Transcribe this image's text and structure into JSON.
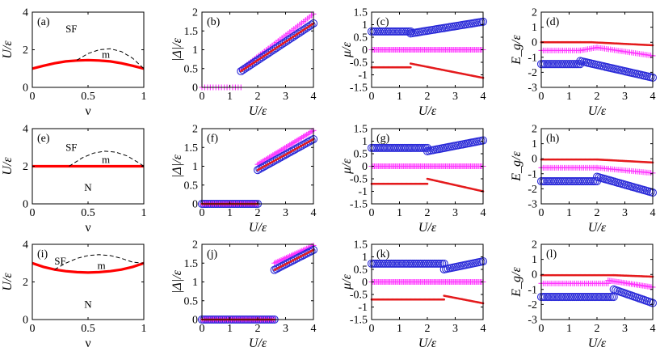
{
  "colors": {
    "red": "#e41a1c",
    "blue": "#2a2ad8",
    "magenta": "#ff33ff",
    "phase_line": "#ff0000",
    "dash": "#000000"
  },
  "chart_data": [
    {
      "panel": "(a)",
      "type": "line",
      "row": 0,
      "col": 0,
      "xlabel": "ν",
      "ylabel": "U/ε",
      "xlim": [
        0,
        1
      ],
      "ylim": [
        0,
        4
      ],
      "xticks": [
        0,
        0.5,
        1
      ],
      "yticks": [
        0,
        2,
        4
      ],
      "regions": [
        {
          "label": "SF",
          "x": 0.35,
          "y": 3.1
        },
        {
          "label": "m",
          "x": 0.66,
          "y": 1.75
        }
      ],
      "series": [
        {
          "style": "phase-boundary",
          "x": [
            0,
            0.1,
            0.2,
            0.3,
            0.4,
            0.5,
            0.6,
            0.7,
            0.8,
            0.9,
            1.0
          ],
          "y": [
            1.0,
            1.15,
            1.28,
            1.38,
            1.43,
            1.45,
            1.43,
            1.38,
            1.28,
            1.15,
            1.0
          ]
        },
        {
          "style": "dashed",
          "x": [
            0.4,
            0.5,
            0.6,
            0.7,
            0.8,
            0.9,
            1.0
          ],
          "y": [
            1.45,
            1.8,
            2.0,
            2.05,
            1.9,
            1.55,
            1.0
          ]
        }
      ]
    },
    {
      "panel": "(b)",
      "type": "scatter",
      "row": 0,
      "col": 1,
      "xlabel": "U/ε",
      "ylabel": "|Δ|/ε",
      "xlim": [
        0,
        4
      ],
      "ylim": [
        0,
        2
      ],
      "xticks": [
        0,
        1,
        2,
        3,
        4
      ],
      "yticks": [
        0,
        0.5,
        1,
        1.5,
        2
      ],
      "series": [
        {
          "marker": "plus",
          "x0": 0,
          "x1": 1.4,
          "step": 0.1,
          "y0": 0,
          "y1": 0
        },
        {
          "marker": "plus",
          "x0": 1.4,
          "x1": 4,
          "step": 0.07,
          "y0": 0.48,
          "y1": 1.95
        },
        {
          "marker": "circle",
          "x0": 1.4,
          "x1": 4,
          "step": 0.07,
          "y0": 0.43,
          "y1": 1.7
        },
        {
          "marker": "dot",
          "x0": 1.4,
          "x1": 4,
          "step": 0.035,
          "y0": 0.43,
          "y1": 1.7
        }
      ]
    },
    {
      "panel": "(c)",
      "type": "scatter",
      "row": 0,
      "col": 2,
      "xlabel": "U/ε",
      "ylabel": "μ/ε",
      "xlim": [
        0,
        4
      ],
      "ylim": [
        -1.5,
        1.5
      ],
      "xticks": [
        0,
        1,
        2,
        3,
        4
      ],
      "yticks": [
        -1.5,
        -1,
        -0.5,
        0,
        0.5,
        1,
        1.5
      ],
      "series": [
        {
          "marker": "circle",
          "x0": 0,
          "x1": 1.4,
          "step": 0.07,
          "y0": 0.73,
          "y1": 0.73
        },
        {
          "marker": "circle",
          "x0": 1.4,
          "x1": 4,
          "step": 0.07,
          "y0": 0.65,
          "y1": 1.12
        },
        {
          "marker": "plus",
          "x0": 0,
          "x1": 4,
          "step": 0.05,
          "y0": 0,
          "y1": 0
        },
        {
          "marker": "dot",
          "x0": 0,
          "x1": 1.4,
          "step": 0.035,
          "y0": -0.7,
          "y1": -0.7
        },
        {
          "marker": "dot",
          "x0": 1.4,
          "x1": 4,
          "step": 0.035,
          "y0": -0.55,
          "y1": -1.12
        }
      ]
    },
    {
      "panel": "(d)",
      "type": "scatter",
      "row": 0,
      "col": 3,
      "xlabel": "U/ε",
      "ylabel": "E_g/ε",
      "xlim": [
        0,
        4
      ],
      "ylim": [
        -3,
        2
      ],
      "xticks": [
        0,
        1,
        2,
        3,
        4
      ],
      "yticks": [
        -3,
        -2,
        -1,
        0,
        1,
        2
      ],
      "series": [
        {
          "marker": "dot",
          "x0": 0,
          "x1": 1.4,
          "step": 0.035,
          "y0": 0,
          "y1": 0
        },
        {
          "marker": "dot",
          "x0": 1.4,
          "x1": 1.8,
          "step": 0.035,
          "y0": 0,
          "y1": 0
        },
        {
          "marker": "dot",
          "x0": 1.8,
          "x1": 4,
          "step": 0.035,
          "y0": 0,
          "y1": -0.2
        },
        {
          "marker": "plus",
          "x0": 0,
          "x1": 1.4,
          "step": 0.07,
          "y0": -0.55,
          "y1": -0.55
        },
        {
          "marker": "plus",
          "x0": 1.4,
          "x1": 2.0,
          "step": 0.07,
          "y0": -0.55,
          "y1": -0.35
        },
        {
          "marker": "plus",
          "x0": 2.0,
          "x1": 4,
          "step": 0.07,
          "y0": -0.35,
          "y1": -0.9
        },
        {
          "marker": "circle",
          "x0": 0,
          "x1": 1.4,
          "step": 0.07,
          "y0": -1.45,
          "y1": -1.45
        },
        {
          "marker": "circle",
          "x0": 1.4,
          "x1": 4,
          "step": 0.07,
          "y0": -1.25,
          "y1": -2.35
        }
      ]
    },
    {
      "panel": "(e)",
      "type": "line",
      "row": 1,
      "col": 0,
      "xlabel": "ν",
      "ylabel": "U/ε",
      "xlim": [
        0,
        1
      ],
      "ylim": [
        0,
        4
      ],
      "xticks": [
        0,
        0.5,
        1
      ],
      "yticks": [
        0,
        2,
        4
      ],
      "regions": [
        {
          "label": "SF",
          "x": 0.35,
          "y": 3.0
        },
        {
          "label": "m",
          "x": 0.66,
          "y": 2.35
        },
        {
          "label": "N",
          "x": 0.5,
          "y": 0.85
        }
      ],
      "series": [
        {
          "style": "phase-boundary",
          "x": [
            0,
            1
          ],
          "y": [
            2,
            2
          ]
        },
        {
          "style": "dashed",
          "x": [
            0.33,
            0.45,
            0.55,
            0.65,
            0.75,
            0.85,
            0.95,
            1.0
          ],
          "y": [
            2.0,
            2.45,
            2.7,
            2.8,
            2.75,
            2.55,
            2.2,
            2.0
          ]
        }
      ]
    },
    {
      "panel": "(f)",
      "type": "scatter",
      "row": 1,
      "col": 1,
      "xlabel": "U/ε",
      "ylabel": "|Δ|/ε",
      "xlim": [
        0,
        4
      ],
      "ylim": [
        0,
        2
      ],
      "xticks": [
        0,
        1,
        2,
        3,
        4
      ],
      "yticks": [
        0,
        0.5,
        1,
        1.5,
        2
      ],
      "series": [
        {
          "marker": "circle",
          "x0": 0,
          "x1": 2,
          "step": 0.07,
          "y0": 0,
          "y1": 0
        },
        {
          "marker": "plus",
          "x0": 0,
          "x1": 2,
          "step": 0.07,
          "y0": 0,
          "y1": 0
        },
        {
          "marker": "dot",
          "x0": 0,
          "x1": 2,
          "step": 0.035,
          "y0": 0,
          "y1": 0
        },
        {
          "marker": "plus",
          "x0": 2,
          "x1": 4,
          "step": 0.06,
          "y0": 1.05,
          "y1": 1.95
        },
        {
          "marker": "circle",
          "x0": 2,
          "x1": 4,
          "step": 0.07,
          "y0": 0.9,
          "y1": 1.72
        },
        {
          "marker": "dot",
          "x0": 2,
          "x1": 4,
          "step": 0.035,
          "y0": 0.9,
          "y1": 1.72
        }
      ]
    },
    {
      "panel": "(g)",
      "type": "scatter",
      "row": 1,
      "col": 2,
      "xlabel": "U/ε",
      "ylabel": "μ/ε",
      "xlim": [
        0,
        4
      ],
      "ylim": [
        -1.5,
        1.5
      ],
      "xticks": [
        0,
        1,
        2,
        3,
        4
      ],
      "yticks": [
        -1.5,
        -1,
        -0.5,
        0,
        0.5,
        1,
        1.5
      ],
      "series": [
        {
          "marker": "circle",
          "x0": 0,
          "x1": 2,
          "step": 0.07,
          "y0": 0.73,
          "y1": 0.73
        },
        {
          "marker": "circle",
          "x0": 2,
          "x1": 4,
          "step": 0.07,
          "y0": 0.6,
          "y1": 1.03
        },
        {
          "marker": "plus",
          "x0": 0,
          "x1": 4,
          "step": 0.05,
          "y0": 0,
          "y1": 0
        },
        {
          "marker": "dot",
          "x0": 0,
          "x1": 2,
          "step": 0.035,
          "y0": -0.7,
          "y1": -0.7
        },
        {
          "marker": "dot",
          "x0": 2,
          "x1": 4,
          "step": 0.035,
          "y0": -0.5,
          "y1": -1.0
        }
      ]
    },
    {
      "panel": "(h)",
      "type": "scatter",
      "row": 1,
      "col": 3,
      "xlabel": "U/ε",
      "ylabel": "E_g/ε",
      "xlim": [
        0,
        4
      ],
      "ylim": [
        -3,
        2
      ],
      "xticks": [
        0,
        1,
        2,
        3,
        4
      ],
      "yticks": [
        -3,
        -2,
        -1,
        0,
        1,
        2
      ],
      "series": [
        {
          "marker": "dot",
          "x0": 0,
          "x1": 2,
          "step": 0.035,
          "y0": -0.05,
          "y1": -0.05
        },
        {
          "marker": "dot",
          "x0": 2,
          "x1": 4,
          "step": 0.035,
          "y0": -0.05,
          "y1": -0.25
        },
        {
          "marker": "plus",
          "x0": 0,
          "x1": 2,
          "step": 0.07,
          "y0": -0.6,
          "y1": -0.6
        },
        {
          "marker": "plus",
          "x0": 2,
          "x1": 4,
          "step": 0.07,
          "y0": -0.6,
          "y1": -0.95
        },
        {
          "marker": "circle",
          "x0": 0,
          "x1": 2,
          "step": 0.07,
          "y0": -1.5,
          "y1": -1.5
        },
        {
          "marker": "circle",
          "x0": 2,
          "x1": 4,
          "step": 0.07,
          "y0": -1.2,
          "y1": -2.25
        }
      ]
    },
    {
      "panel": "(i)",
      "type": "line",
      "row": 2,
      "col": 0,
      "xlabel": "ν",
      "ylabel": "U/ε",
      "xlim": [
        0,
        1
      ],
      "ylim": [
        0,
        4
      ],
      "xticks": [
        0,
        0.5,
        1
      ],
      "yticks": [
        0,
        2,
        4
      ],
      "regions": [
        {
          "label": "SF",
          "x": 0.25,
          "y": 3.1
        },
        {
          "label": "m",
          "x": 0.62,
          "y": 2.85
        },
        {
          "label": "N",
          "x": 0.5,
          "y": 0.8
        }
      ],
      "series": [
        {
          "style": "phase-boundary",
          "x": [
            0,
            0.1,
            0.2,
            0.3,
            0.4,
            0.5,
            0.6,
            0.7,
            0.8,
            0.9,
            1.0
          ],
          "y": [
            3.0,
            2.8,
            2.66,
            2.57,
            2.52,
            2.5,
            2.52,
            2.57,
            2.66,
            2.8,
            3.0
          ]
        },
        {
          "style": "dashed",
          "x": [
            0.2,
            0.3,
            0.4,
            0.5,
            0.6,
            0.7,
            0.8,
            0.9,
            1.0
          ],
          "y": [
            2.66,
            3.0,
            3.25,
            3.4,
            3.45,
            3.4,
            3.25,
            3.05,
            3.0
          ]
        }
      ]
    },
    {
      "panel": "(j)",
      "type": "scatter",
      "row": 2,
      "col": 1,
      "xlabel": "U/ε",
      "ylabel": "|Δ|/ε",
      "xlim": [
        0,
        4
      ],
      "ylim": [
        0,
        2
      ],
      "xticks": [
        0,
        1,
        2,
        3,
        4
      ],
      "yticks": [
        0,
        0.5,
        1,
        1.5,
        2
      ],
      "series": [
        {
          "marker": "circle",
          "x0": 0,
          "x1": 2.6,
          "step": 0.07,
          "y0": 0,
          "y1": 0
        },
        {
          "marker": "plus",
          "x0": 0,
          "x1": 2.6,
          "step": 0.07,
          "y0": 0,
          "y1": 0
        },
        {
          "marker": "dot",
          "x0": 0,
          "x1": 2.6,
          "step": 0.035,
          "y0": 0,
          "y1": 0
        },
        {
          "marker": "plus",
          "x0": 2.6,
          "x1": 4,
          "step": 0.06,
          "y0": 1.5,
          "y1": 1.97
        },
        {
          "marker": "circle",
          "x0": 2.6,
          "x1": 4,
          "step": 0.07,
          "y0": 1.32,
          "y1": 1.85
        },
        {
          "marker": "dot",
          "x0": 2.6,
          "x1": 4,
          "step": 0.035,
          "y0": 1.32,
          "y1": 1.85
        }
      ]
    },
    {
      "panel": "(k)",
      "type": "scatter",
      "row": 2,
      "col": 2,
      "xlabel": "U/ε",
      "ylabel": "μ/ε",
      "xlim": [
        0,
        4
      ],
      "ylim": [
        -1.5,
        1.5
      ],
      "xticks": [
        0,
        1,
        2,
        3,
        4
      ],
      "yticks": [
        -1.5,
        -1,
        -0.5,
        0,
        0.5,
        1,
        1.5
      ],
      "series": [
        {
          "marker": "circle",
          "x0": 0,
          "x1": 2.6,
          "step": 0.07,
          "y0": 0.73,
          "y1": 0.73
        },
        {
          "marker": "circle",
          "x0": 2.6,
          "x1": 4,
          "step": 0.07,
          "y0": 0.5,
          "y1": 0.82
        },
        {
          "marker": "plus",
          "x0": 0,
          "x1": 4,
          "step": 0.05,
          "y0": 0,
          "y1": 0
        },
        {
          "marker": "dot",
          "x0": 0,
          "x1": 2.6,
          "step": 0.035,
          "y0": -0.7,
          "y1": -0.7
        },
        {
          "marker": "dot",
          "x0": 2.6,
          "x1": 4,
          "step": 0.035,
          "y0": -0.55,
          "y1": -0.85
        }
      ]
    },
    {
      "panel": "(l)",
      "type": "scatter",
      "row": 2,
      "col": 3,
      "xlabel": "U/ε",
      "ylabel": "E_g/ε",
      "xlim": [
        0,
        4
      ],
      "ylim": [
        -3,
        2
      ],
      "xticks": [
        0,
        1,
        2,
        3,
        4
      ],
      "yticks": [
        -3,
        -2,
        -1,
        0,
        1,
        2
      ],
      "series": [
        {
          "marker": "dot",
          "x0": 0,
          "x1": 2.6,
          "step": 0.035,
          "y0": -0.05,
          "y1": -0.05
        },
        {
          "marker": "dot",
          "x0": 2.6,
          "x1": 4,
          "step": 0.035,
          "y0": -0.05,
          "y1": -0.15
        },
        {
          "marker": "plus",
          "x0": 0,
          "x1": 2.4,
          "step": 0.07,
          "y0": -0.6,
          "y1": -0.6
        },
        {
          "marker": "plus",
          "x0": 2.4,
          "x1": 4,
          "step": 0.06,
          "y0": -0.4,
          "y1": -0.85
        },
        {
          "marker": "circle",
          "x0": 0,
          "x1": 2.6,
          "step": 0.07,
          "y0": -1.5,
          "y1": -1.5
        },
        {
          "marker": "circle",
          "x0": 2.6,
          "x1": 4,
          "step": 0.07,
          "y0": -1.0,
          "y1": -1.9
        }
      ]
    }
  ]
}
